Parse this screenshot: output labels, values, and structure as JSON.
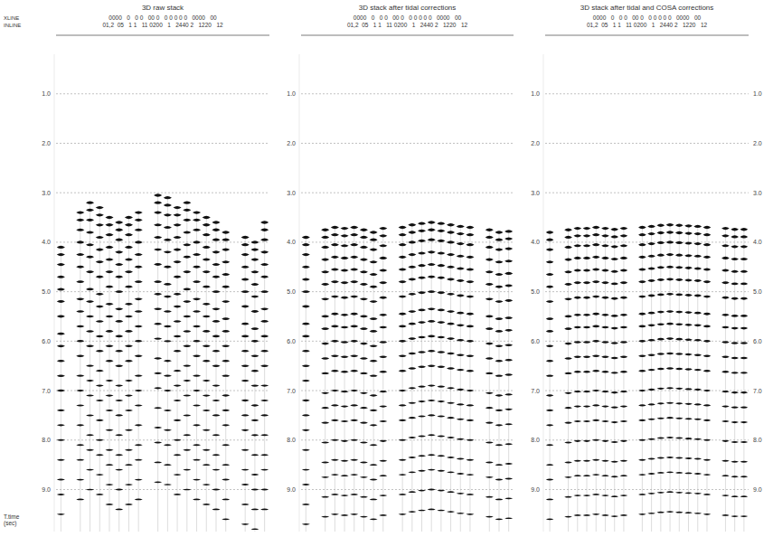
{
  "chart_data": [
    {
      "type": "seismic",
      "title": "3D raw stack",
      "header_labels": [
        "XLINE",
        "INLINE"
      ],
      "header_rows": [
        "0000   0   0 0   00 0   0 0 0 0 0   0000   00",
        "01,2  05   1 1   11 0200   1   2440 2   1220   12"
      ],
      "ylabel": "T.time (sec)",
      "ylim": [
        0.2,
        9.85
      ],
      "yticks": [
        {
          "value": 1,
          "label": "1.0"
        },
        {
          "value": 2,
          "label": "2.0"
        },
        {
          "value": 3,
          "label": "3.0"
        },
        {
          "value": 4,
          "label": "4.0"
        },
        {
          "value": 5,
          "label": "5.0"
        },
        {
          "value": 6,
          "label": "6.0"
        },
        {
          "value": 7,
          "label": "7.0"
        },
        {
          "value": 8,
          "label": "8.0"
        },
        {
          "value": 9,
          "label": "9.0"
        }
      ],
      "grid": true,
      "traces": [
        4.1,
        null,
        3.4,
        3.2,
        3.3,
        3.5,
        3.6,
        3.5,
        3.4,
        null,
        3.05,
        3.1,
        3.3,
        3.2,
        3.4,
        3.5,
        3.6,
        3.8,
        null,
        3.9,
        4.0,
        3.6
      ],
      "reflectors": [
        0,
        0.15,
        0.35,
        0.6,
        0.85,
        1.1,
        1.4,
        1.75,
        2.0,
        2.3,
        2.6,
        2.9,
        3.3,
        3.6,
        3.9,
        4.3,
        4.7,
        5.0,
        5.4,
        5.8
      ]
    },
    {
      "type": "seismic",
      "title": "3D stack after tidal corrections",
      "header_rows": [
        "0000   0   0 0   00 0   0 0 0 0 0   0000   00",
        "01,2  05   1 1   11 0200   1   2440 2   1220   12"
      ],
      "ylim": [
        0.2,
        9.85
      ],
      "yticks": [
        {
          "value": 1,
          "label": "1.0"
        },
        {
          "value": 2,
          "label": "2.0"
        },
        {
          "value": 3,
          "label": "3.0"
        },
        {
          "value": 4,
          "label": "4.0"
        },
        {
          "value": 5,
          "label": "5.0"
        },
        {
          "value": 6,
          "label": "6.0"
        },
        {
          "value": 7,
          "label": "7.0"
        },
        {
          "value": 8,
          "label": "8.0"
        },
        {
          "value": 9,
          "label": "9.0"
        }
      ],
      "grid": true,
      "traces": [
        3.9,
        null,
        3.75,
        3.7,
        3.72,
        3.7,
        3.75,
        3.8,
        3.72,
        null,
        3.7,
        3.65,
        3.62,
        3.6,
        3.62,
        3.65,
        3.68,
        3.7,
        null,
        3.75,
        3.8,
        3.78
      ],
      "reflectors": [
        0,
        0.15,
        0.35,
        0.6,
        0.85,
        1.1,
        1.4,
        1.75,
        2.0,
        2.3,
        2.6,
        2.9,
        3.3,
        3.6,
        3.9,
        4.3,
        4.7,
        5.0,
        5.4,
        5.8
      ]
    },
    {
      "type": "seismic",
      "title": "3D stack after tidal and COSA corrections",
      "header_rows": [
        "0000   0   0 0   00 0   0 0 0 0 0   0000   00",
        "01,2  05   1 1   11 0200   1   2440 2   1220   12"
      ],
      "ylim": [
        0.2,
        9.85
      ],
      "yticks": [
        {
          "value": 1,
          "label": "1.0"
        },
        {
          "value": 2,
          "label": "2.0"
        },
        {
          "value": 3,
          "label": "3.0"
        },
        {
          "value": 4,
          "label": "4.0"
        },
        {
          "value": 5,
          "label": "5.0"
        },
        {
          "value": 6,
          "label": "6.0"
        },
        {
          "value": 7,
          "label": "7.0"
        },
        {
          "value": 8,
          "label": "8.0"
        },
        {
          "value": 9,
          "label": "9.0"
        }
      ],
      "grid": true,
      "traces": [
        3.8,
        null,
        3.75,
        3.72,
        3.72,
        3.7,
        3.72,
        3.74,
        3.72,
        null,
        3.7,
        3.68,
        3.66,
        3.65,
        3.66,
        3.67,
        3.68,
        3.7,
        null,
        3.72,
        3.74,
        3.74
      ],
      "reflectors": [
        0,
        0.15,
        0.35,
        0.6,
        0.85,
        1.1,
        1.4,
        1.75,
        2.0,
        2.3,
        2.6,
        2.9,
        3.3,
        3.6,
        3.9,
        4.3,
        4.7,
        5.0,
        5.4,
        5.8
      ]
    }
  ]
}
